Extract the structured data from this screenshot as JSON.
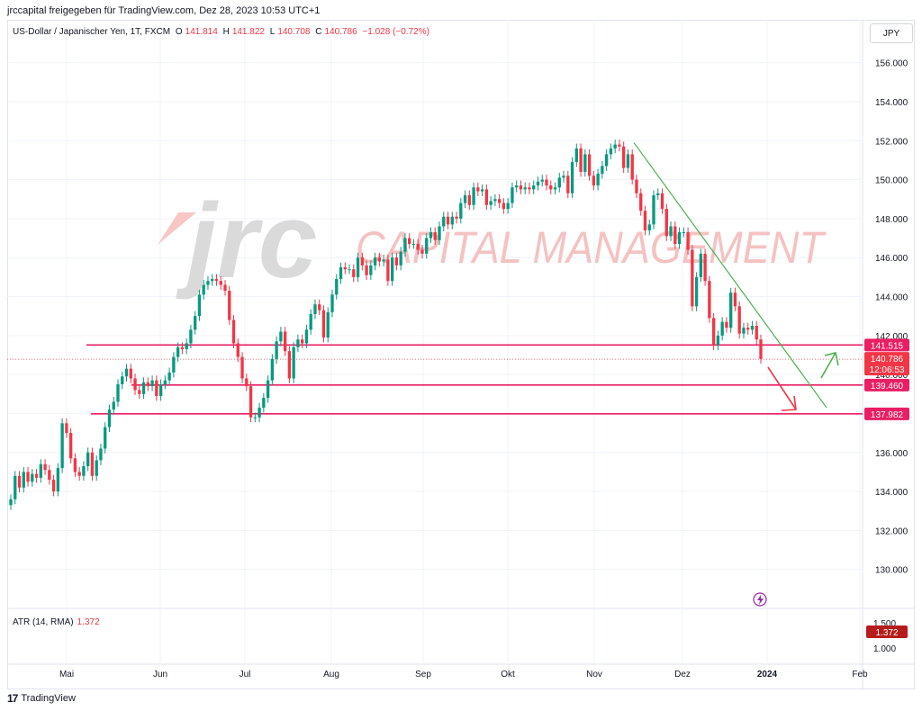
{
  "caption": "jrccapital freigegeben für TradingView.com, Dez 28, 2023 10:53 UTC+1",
  "legend": {
    "symbol": "US-Dollar / Japanischer Yen, 1T, FXCM",
    "o_label": "O",
    "o_val": "141.814",
    "h_label": "H",
    "h_val": "141.822",
    "l_label": "L",
    "l_val": "140.708",
    "c_label": "C",
    "c_val": "140.786",
    "change": "−1.028 (−0.72%)"
  },
  "currency_button": "JPY",
  "atr": {
    "label": "ATR (14, RMA)",
    "value": "1.372"
  },
  "footer": "TradingView",
  "watermark": "CAPITAL MANAGEMENT",
  "colors": {
    "up": "#089981",
    "down": "#f23645",
    "level": "#e91e63",
    "trend": "#4caf50",
    "arrow_up": "#4caf50",
    "arrow_down": "#f23645"
  },
  "chart_data": {
    "type": "candlestick",
    "title": "US-Dollar / Japanischer Yen, 1T, FXCM",
    "ylim": [
      128,
      157
    ],
    "y_ticks": [
      "156.000",
      "154.000",
      "152.000",
      "150.000",
      "148.000",
      "146.000",
      "144.000",
      "142.000",
      "140.000",
      "138.000",
      "136.000",
      "134.000",
      "132.000",
      "130.000"
    ],
    "x_ticks": [
      "Mai",
      "Jun",
      "Jul",
      "Aug",
      "Sep",
      "Okt",
      "Nov",
      "Dez",
      "2024",
      "Feb"
    ],
    "price_labels": [
      {
        "value": 141.515,
        "text": "141.515"
      },
      {
        "value": 139.46,
        "text": "139.460"
      },
      {
        "value": 137.982,
        "text": "137.982"
      }
    ],
    "last_price": {
      "value": 140.786,
      "text": "140.786",
      "countdown": "12:06:53"
    },
    "atr_axis": {
      "ticks": [
        "1.500",
        "1.000"
      ],
      "value_label": "1.372"
    },
    "horizontal_levels": [
      141.515,
      139.46,
      137.982
    ],
    "trendline": [
      [
        151.9,
        138.3
      ]
    ],
    "closes": [
      133.6,
      134.8,
      134.2,
      135.0,
      134.5,
      134.9,
      134.7,
      135.4,
      135.1,
      134.6,
      134.0,
      135.2,
      137.5,
      137.0,
      135.7,
      135.0,
      134.8,
      135.3,
      136.0,
      134.8,
      135.6,
      136.2,
      137.3,
      138.2,
      138.6,
      139.5,
      139.9,
      140.3,
      139.8,
      139.2,
      139.0,
      139.6,
      139.4,
      139.7,
      138.9,
      139.5,
      139.7,
      140.1,
      140.9,
      141.4,
      141.3,
      141.6,
      142.3,
      143.0,
      144.1,
      144.6,
      144.8,
      144.9,
      144.8,
      144.6,
      144.3,
      142.8,
      141.6,
      140.9,
      139.8,
      139.4,
      137.8,
      137.8,
      138.3,
      138.8,
      139.7,
      140.8,
      141.7,
      142.2,
      141.2,
      139.8,
      141.4,
      141.8,
      141.6,
      142.3,
      143.1,
      143.6,
      143.3,
      141.9,
      143.2,
      144.1,
      144.9,
      145.5,
      145.4,
      145.4,
      145.0,
      146.0,
      145.6,
      145.1,
      145.6,
      146.0,
      145.8,
      145.9,
      144.8,
      146.0,
      145.6,
      146.3,
      147.0,
      146.7,
      146.7,
      146.4,
      146.2,
      147.0,
      147.3,
      146.9,
      147.6,
      148.1,
      147.7,
      148.1,
      148.0,
      148.8,
      149.2,
      148.7,
      149.6,
      149.4,
      149.5,
      148.7,
      148.9,
      149.0,
      148.8,
      148.5,
      148.8,
      149.6,
      149.7,
      149.5,
      149.6,
      149.5,
      149.7,
      149.9,
      150.0,
      149.7,
      149.5,
      149.6,
      150.1,
      150.2,
      149.3,
      150.9,
      151.6,
      150.4,
      151.3,
      150.2,
      149.7,
      150.3,
      150.7,
      151.3,
      151.6,
      151.8,
      151.7,
      150.6,
      151.3,
      150.0,
      149.3,
      148.4,
      147.4,
      147.7,
      149.2,
      149.3,
      148.5,
      147.1,
      147.6,
      146.7,
      147.3,
      147.3,
      146.4,
      143.5,
      145.0,
      146.2,
      144.8,
      142.9,
      141.5,
      142.0,
      142.7,
      142.4,
      144.2,
      143.5,
      142.1,
      142.4,
      142.3,
      142.5,
      141.8,
      140.8
    ]
  }
}
